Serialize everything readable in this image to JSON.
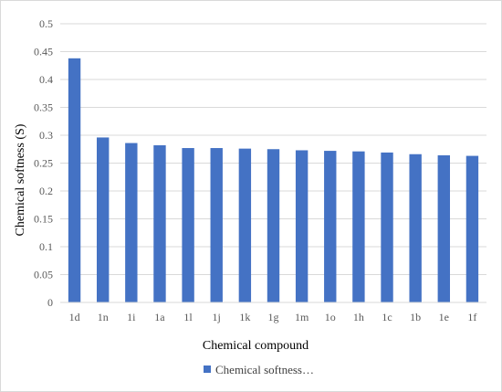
{
  "chart_data": {
    "type": "bar",
    "title": "",
    "xlabel": "Chemical compound",
    "ylabel": "Chemical softness (S)",
    "categories": [
      "1d",
      "1n",
      "1i",
      "1a",
      "1l",
      "1j",
      "1k",
      "1g",
      "1m",
      "1o",
      "1h",
      "1c",
      "1b",
      "1e",
      "1f"
    ],
    "series": [
      {
        "name": "Chemical softness…",
        "values": [
          0.438,
          0.296,
          0.286,
          0.282,
          0.277,
          0.277,
          0.276,
          0.275,
          0.273,
          0.272,
          0.271,
          0.269,
          0.266,
          0.264,
          0.263
        ]
      }
    ],
    "ylim": [
      0,
      0.5
    ],
    "ytick_labels": [
      "0",
      "0.05",
      "0.1",
      "0.15",
      "0.2",
      "0.25",
      "0.3",
      "0.35",
      "0.4",
      "0.45",
      "0.5"
    ],
    "grid": true,
    "legend_position": "bottom",
    "bar_color": "#4472C4",
    "grid_color": "#d9d9d9"
  }
}
